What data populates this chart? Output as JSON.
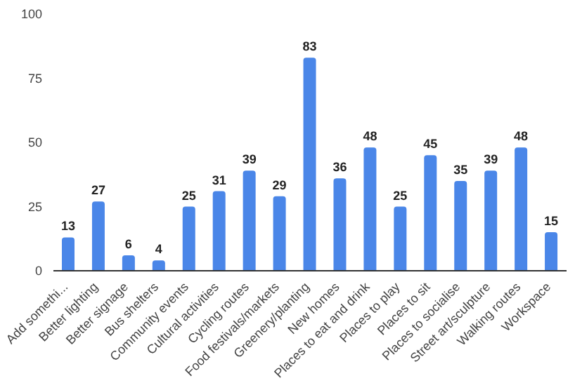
{
  "chart_data": {
    "type": "bar",
    "categories": [
      "Add somethi...",
      "Better lighting",
      "Better signage",
      "Bus shelters",
      "Community events",
      "Cultural activities",
      "Cycling routes",
      "Food festivals/markets",
      "Greenery/planting",
      "New homes",
      "Places to eat and drink",
      "Places to play",
      "Places to sit",
      "Places to socialise",
      "Street art/sculpture",
      "Walking routes",
      "Workspace"
    ],
    "values": [
      13,
      27,
      6,
      4,
      25,
      31,
      39,
      29,
      83,
      36,
      48,
      25,
      45,
      35,
      39,
      48,
      15
    ],
    "color": "#4a86e8",
    "ylim": [
      0,
      100
    ],
    "yticks": [
      0,
      25,
      50,
      75,
      100
    ],
    "grid": false,
    "data_labels": true
  }
}
